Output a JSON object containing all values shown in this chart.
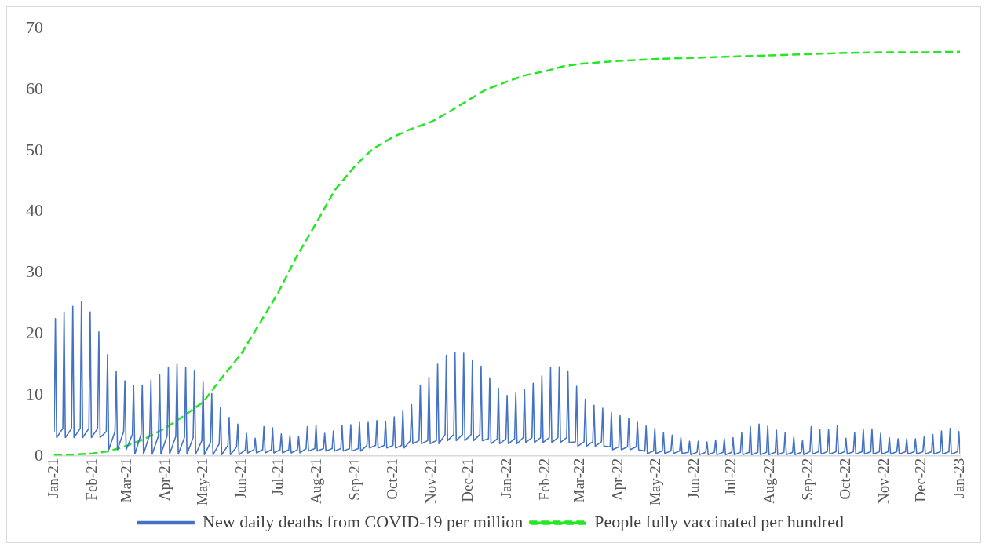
{
  "chart_data": {
    "type": "line",
    "legend": "bottom",
    "grid": false,
    "marker": "none",
    "xlim": [
      "2021-01-01",
      "2023-01-01"
    ],
    "ylim": [
      0,
      70
    ],
    "yticks": [
      0,
      10,
      20,
      30,
      40,
      50,
      60,
      70
    ],
    "xticks": [
      {
        "value": "2021-01-01",
        "label": "Jan-21"
      },
      {
        "value": "2021-02-01",
        "label": "Feb-21"
      },
      {
        "value": "2021-03-01",
        "label": "Mar-21"
      },
      {
        "value": "2021-04-01",
        "label": "Apr-21"
      },
      {
        "value": "2021-05-01",
        "label": "May-21"
      },
      {
        "value": "2021-06-01",
        "label": "Jun-21"
      },
      {
        "value": "2021-07-01",
        "label": "Jul-21"
      },
      {
        "value": "2021-08-01",
        "label": "Aug-21"
      },
      {
        "value": "2021-09-01",
        "label": "Sep-21"
      },
      {
        "value": "2021-10-01",
        "label": "Oct-21"
      },
      {
        "value": "2021-11-01",
        "label": "Nov-21"
      },
      {
        "value": "2021-12-01",
        "label": "Dec-21"
      },
      {
        "value": "2022-01-01",
        "label": "Jan-22"
      },
      {
        "value": "2022-02-01",
        "label": "Feb-22"
      },
      {
        "value": "2022-03-01",
        "label": "Mar-22"
      },
      {
        "value": "2022-04-01",
        "label": "Apr-22"
      },
      {
        "value": "2022-05-01",
        "label": "May-22"
      },
      {
        "value": "2022-06-01",
        "label": "Jun-22"
      },
      {
        "value": "2022-07-01",
        "label": "Jul-22"
      },
      {
        "value": "2022-08-01",
        "label": "Aug-22"
      },
      {
        "value": "2022-09-01",
        "label": "Sep-22"
      },
      {
        "value": "2022-10-01",
        "label": "Oct-22"
      },
      {
        "value": "2022-11-01",
        "label": "Nov-22"
      },
      {
        "value": "2022-12-01",
        "label": "Dec-22"
      },
      {
        "value": "2023-01-01",
        "label": "Jan-23"
      }
    ],
    "series": [
      {
        "name": "New daily deaths from COVID-19 per million",
        "color": "#4472c4",
        "line_style": "solid",
        "x": [
          "2021-01-01",
          "2021-01-02",
          "2021-01-03",
          "2021-01-08",
          "2021-01-09",
          "2021-01-10",
          "2021-01-15",
          "2021-01-16",
          "2021-01-17",
          "2021-01-22",
          "2021-01-23",
          "2021-01-24",
          "2021-01-29",
          "2021-01-30",
          "2021-01-31",
          "2021-02-05",
          "2021-02-06",
          "2021-02-07",
          "2021-02-12",
          "2021-02-13",
          "2021-02-14",
          "2021-02-19",
          "2021-02-20",
          "2021-02-21",
          "2021-02-26",
          "2021-02-27",
          "2021-02-28",
          "2021-03-05",
          "2021-03-06",
          "2021-03-07",
          "2021-03-12",
          "2021-03-13",
          "2021-03-14",
          "2021-03-19",
          "2021-03-20",
          "2021-03-21",
          "2021-03-26",
          "2021-03-27",
          "2021-03-28",
          "2021-04-02",
          "2021-04-03",
          "2021-04-04",
          "2021-04-09",
          "2021-04-10",
          "2021-04-11",
          "2021-04-16",
          "2021-04-17",
          "2021-04-18",
          "2021-04-23",
          "2021-04-24",
          "2021-04-25",
          "2021-04-30",
          "2021-05-01",
          "2021-05-02",
          "2021-05-07",
          "2021-05-08",
          "2021-05-09",
          "2021-05-14",
          "2021-05-15",
          "2021-05-16",
          "2021-05-21",
          "2021-05-22",
          "2021-05-23",
          "2021-05-28",
          "2021-05-29",
          "2021-05-30",
          "2021-06-04",
          "2021-06-05",
          "2021-06-06",
          "2021-06-11",
          "2021-06-12",
          "2021-06-13",
          "2021-06-18",
          "2021-06-19",
          "2021-06-20",
          "2021-06-25",
          "2021-06-26",
          "2021-06-27",
          "2021-07-02",
          "2021-07-03",
          "2021-07-04",
          "2021-07-09",
          "2021-07-10",
          "2021-07-11",
          "2021-07-16",
          "2021-07-17",
          "2021-07-18",
          "2021-07-23",
          "2021-07-24",
          "2021-07-25",
          "2021-07-30",
          "2021-07-31",
          "2021-08-01",
          "2021-08-06",
          "2021-08-07",
          "2021-08-08",
          "2021-08-13",
          "2021-08-14",
          "2021-08-15",
          "2021-08-20",
          "2021-08-21",
          "2021-08-22",
          "2021-08-27",
          "2021-08-28",
          "2021-08-29",
          "2021-09-03",
          "2021-09-04",
          "2021-09-05",
          "2021-09-10",
          "2021-09-11",
          "2021-09-12",
          "2021-09-17",
          "2021-09-18",
          "2021-09-19",
          "2021-09-24",
          "2021-09-25",
          "2021-09-26",
          "2021-10-01",
          "2021-10-02",
          "2021-10-03",
          "2021-10-08",
          "2021-10-09",
          "2021-10-10",
          "2021-10-15",
          "2021-10-16",
          "2021-10-17",
          "2021-10-22",
          "2021-10-23",
          "2021-10-24",
          "2021-10-29",
          "2021-10-30",
          "2021-10-31",
          "2021-11-05",
          "2021-11-06",
          "2021-11-07",
          "2021-11-12",
          "2021-11-13",
          "2021-11-14",
          "2021-11-19",
          "2021-11-20",
          "2021-11-21",
          "2021-11-26",
          "2021-11-27",
          "2021-11-28",
          "2021-12-03",
          "2021-12-04",
          "2021-12-05",
          "2021-12-10",
          "2021-12-11",
          "2021-12-12",
          "2021-12-17",
          "2021-12-18",
          "2021-12-19",
          "2021-12-24",
          "2021-12-25",
          "2021-12-26",
          "2021-12-31",
          "2022-01-01",
          "2022-01-02",
          "2022-01-07",
          "2022-01-08",
          "2022-01-09",
          "2022-01-14",
          "2022-01-15",
          "2022-01-16",
          "2022-01-21",
          "2022-01-22",
          "2022-01-23",
          "2022-01-28",
          "2022-01-29",
          "2022-01-30",
          "2022-02-04",
          "2022-02-05",
          "2022-02-06",
          "2022-02-11",
          "2022-02-12",
          "2022-02-13",
          "2022-02-18",
          "2022-02-19",
          "2022-02-20",
          "2022-02-25",
          "2022-02-26",
          "2022-02-27",
          "2022-03-04",
          "2022-03-05",
          "2022-03-06",
          "2022-03-11",
          "2022-03-12",
          "2022-03-13",
          "2022-03-18",
          "2022-03-19",
          "2022-03-20",
          "2022-03-25",
          "2022-03-26",
          "2022-03-27",
          "2022-04-01",
          "2022-04-02",
          "2022-04-03",
          "2022-04-08",
          "2022-04-09",
          "2022-04-10",
          "2022-04-15",
          "2022-04-16",
          "2022-04-17",
          "2022-04-22",
          "2022-04-23",
          "2022-04-24",
          "2022-04-29",
          "2022-04-30",
          "2022-05-01",
          "2022-05-06",
          "2022-05-07",
          "2022-05-08",
          "2022-05-13",
          "2022-05-14",
          "2022-05-15",
          "2022-05-20",
          "2022-05-21",
          "2022-05-22",
          "2022-05-27",
          "2022-05-28",
          "2022-05-29",
          "2022-06-03",
          "2022-06-04",
          "2022-06-05",
          "2022-06-10",
          "2022-06-11",
          "2022-06-12",
          "2022-06-17",
          "2022-06-18",
          "2022-06-19",
          "2022-06-24",
          "2022-06-25",
          "2022-06-26",
          "2022-07-01",
          "2022-07-02",
          "2022-07-03",
          "2022-07-08",
          "2022-07-09",
          "2022-07-10",
          "2022-07-15",
          "2022-07-16",
          "2022-07-17",
          "2022-07-22",
          "2022-07-23",
          "2022-07-24",
          "2022-07-29",
          "2022-07-30",
          "2022-07-31",
          "2022-08-05",
          "2022-08-06",
          "2022-08-07",
          "2022-08-12",
          "2022-08-13",
          "2022-08-14",
          "2022-08-19",
          "2022-08-20",
          "2022-08-21",
          "2022-08-26",
          "2022-08-27",
          "2022-08-28",
          "2022-09-02",
          "2022-09-03",
          "2022-09-04",
          "2022-09-09",
          "2022-09-10",
          "2022-09-11",
          "2022-09-16",
          "2022-09-17",
          "2022-09-18",
          "2022-09-23",
          "2022-09-24",
          "2022-09-25",
          "2022-09-30",
          "2022-10-01",
          "2022-10-02",
          "2022-10-07",
          "2022-10-08",
          "2022-10-09",
          "2022-10-14",
          "2022-10-15",
          "2022-10-16",
          "2022-10-21",
          "2022-10-22",
          "2022-10-23",
          "2022-10-28",
          "2022-10-29",
          "2022-10-30",
          "2022-11-04",
          "2022-11-05",
          "2022-11-06",
          "2022-11-11",
          "2022-11-12",
          "2022-11-13",
          "2022-11-18",
          "2022-11-19",
          "2022-11-20",
          "2022-11-25",
          "2022-11-26",
          "2022-11-27",
          "2022-12-02",
          "2022-12-03",
          "2022-12-04",
          "2022-12-09",
          "2022-12-10",
          "2022-12-11",
          "2022-12-16",
          "2022-12-17",
          "2022-12-18",
          "2022-12-23",
          "2022-12-24",
          "2022-12-25",
          "2022-12-30",
          "2022-12-31",
          "2023-01-01"
        ],
        "values": [
          4.0,
          22.5,
          3.0,
          4.5,
          23.6,
          3.0,
          4.5,
          24.5,
          3.0,
          4.5,
          25.3,
          3.0,
          4.5,
          23.6,
          3.0,
          4.5,
          20.3,
          3.0,
          4.0,
          16.6,
          1.0,
          4.0,
          13.8,
          1.0,
          4.0,
          12.3,
          1.0,
          3.5,
          11.6,
          0.3,
          3.5,
          11.6,
          0.3,
          3.5,
          12.4,
          0.3,
          3.3,
          13.3,
          0.3,
          3.3,
          14.5,
          0.3,
          3.2,
          15.0,
          0.3,
          3.0,
          14.5,
          0.3,
          3.0,
          13.9,
          0.3,
          2.5,
          12.1,
          0.2,
          2.2,
          10.2,
          0.2,
          2.0,
          7.9,
          0.2,
          1.7,
          6.3,
          0.2,
          1.5,
          5.2,
          0.2,
          1.0,
          3.7,
          0.5,
          1.0,
          2.9,
          0.5,
          1.0,
          4.8,
          0.5,
          1.0,
          4.6,
          0.5,
          1.0,
          3.6,
          0.5,
          1.0,
          3.3,
          0.5,
          1.0,
          3.2,
          0.5,
          1.2,
          4.8,
          0.8,
          1.2,
          5.0,
          0.8,
          1.2,
          3.7,
          0.8,
          1.2,
          4.1,
          0.8,
          1.2,
          5.0,
          0.8,
          1.2,
          5.1,
          0.8,
          1.2,
          5.5,
          0.8,
          1.7,
          5.5,
          1.3,
          1.7,
          5.8,
          1.3,
          1.7,
          5.7,
          1.3,
          1.7,
          6.4,
          1.3,
          1.7,
          7.5,
          1.3,
          2.5,
          8.4,
          2.0,
          2.5,
          11.6,
          2.0,
          2.5,
          12.9,
          2.0,
          2.5,
          15.0,
          2.0,
          3.5,
          16.5,
          2.5,
          3.5,
          16.9,
          2.5,
          3.5,
          16.8,
          2.5,
          3.5,
          15.6,
          2.5,
          3.5,
          14.7,
          2.5,
          2.8,
          12.8,
          2.0,
          2.8,
          11.1,
          2.0,
          2.8,
          9.9,
          2.0,
          2.8,
          10.3,
          2.0,
          3.0,
          10.9,
          2.2,
          3.0,
          11.9,
          2.2,
          3.0,
          13.1,
          2.2,
          3.0,
          14.5,
          2.2,
          3.0,
          14.6,
          2.2,
          3.0,
          13.8,
          2.2,
          2.3,
          11.4,
          1.6,
          2.3,
          9.3,
          1.6,
          2.3,
          8.3,
          1.6,
          2.3,
          7.8,
          1.6,
          1.5,
          7.1,
          1.0,
          1.5,
          6.6,
          1.0,
          1.5,
          6.1,
          1.0,
          1.5,
          5.5,
          1.0,
          0.8,
          4.9,
          0.4,
          0.8,
          4.5,
          0.4,
          0.8,
          3.8,
          0.4,
          0.8,
          3.4,
          0.4,
          0.8,
          3.0,
          0.4,
          0.6,
          2.4,
          0.2,
          0.6,
          2.4,
          0.2,
          0.6,
          2.3,
          0.2,
          0.6,
          2.6,
          0.2,
          0.6,
          2.8,
          0.2,
          0.6,
          3.0,
          0.2,
          0.6,
          3.8,
          0.2,
          0.6,
          4.8,
          0.2,
          0.6,
          5.2,
          0.2,
          0.6,
          4.9,
          0.2,
          0.6,
          4.2,
          0.2,
          0.6,
          3.8,
          0.2,
          0.6,
          3.1,
          0.2,
          0.6,
          2.5,
          0.2,
          0.7,
          4.8,
          0.3,
          0.7,
          4.3,
          0.3,
          0.7,
          4.3,
          0.3,
          0.7,
          5.0,
          0.3,
          0.7,
          2.9,
          0.3,
          0.7,
          3.8,
          0.3,
          0.7,
          4.4,
          0.3,
          0.7,
          4.4,
          0.3,
          0.7,
          3.7,
          0.3,
          0.7,
          3.0,
          0.3,
          0.7,
          2.8,
          0.3,
          0.7,
          2.8,
          0.3,
          0.7,
          2.8,
          0.3,
          0.7,
          3.1,
          0.3,
          0.7,
          3.5,
          0.3,
          0.7,
          4.1,
          0.3,
          0.7,
          4.5,
          0.3,
          0.7,
          4.0,
          0.3
        ]
      },
      {
        "name": "People fully vaccinated per hundred",
        "color": "#22e822",
        "line_style": "dashed",
        "x": [
          "2021-01-01",
          "2021-01-15",
          "2021-02-01",
          "2021-02-15",
          "2021-03-01",
          "2021-03-15",
          "2021-04-01",
          "2021-04-15",
          "2021-05-01",
          "2021-05-15",
          "2021-06-01",
          "2021-06-15",
          "2021-07-01",
          "2021-07-15",
          "2021-08-01",
          "2021-08-15",
          "2021-09-01",
          "2021-09-15",
          "2021-10-01",
          "2021-10-15",
          "2021-11-01",
          "2021-11-15",
          "2021-12-01",
          "2021-12-15",
          "2022-01-01",
          "2022-01-15",
          "2022-02-01",
          "2022-02-15",
          "2022-03-01",
          "2022-04-01",
          "2022-05-01",
          "2022-06-01",
          "2022-07-01",
          "2022-08-01",
          "2022-09-01",
          "2022-10-01",
          "2022-11-01",
          "2022-12-01",
          "2023-01-01"
        ],
        "values": [
          0.2,
          0.2,
          0.4,
          0.8,
          1.7,
          2.8,
          4.6,
          6.5,
          8.8,
          12.5,
          16.8,
          21.5,
          26.9,
          32.5,
          38.4,
          43.5,
          47.6,
          50.3,
          52.2,
          53.5,
          54.7,
          56.3,
          58.3,
          60.0,
          61.3,
          62.3,
          63.0,
          63.8,
          64.2,
          64.7,
          65.0,
          65.2,
          65.4,
          65.6,
          65.8,
          66.0,
          66.1,
          66.1,
          66.2
        ]
      }
    ]
  }
}
